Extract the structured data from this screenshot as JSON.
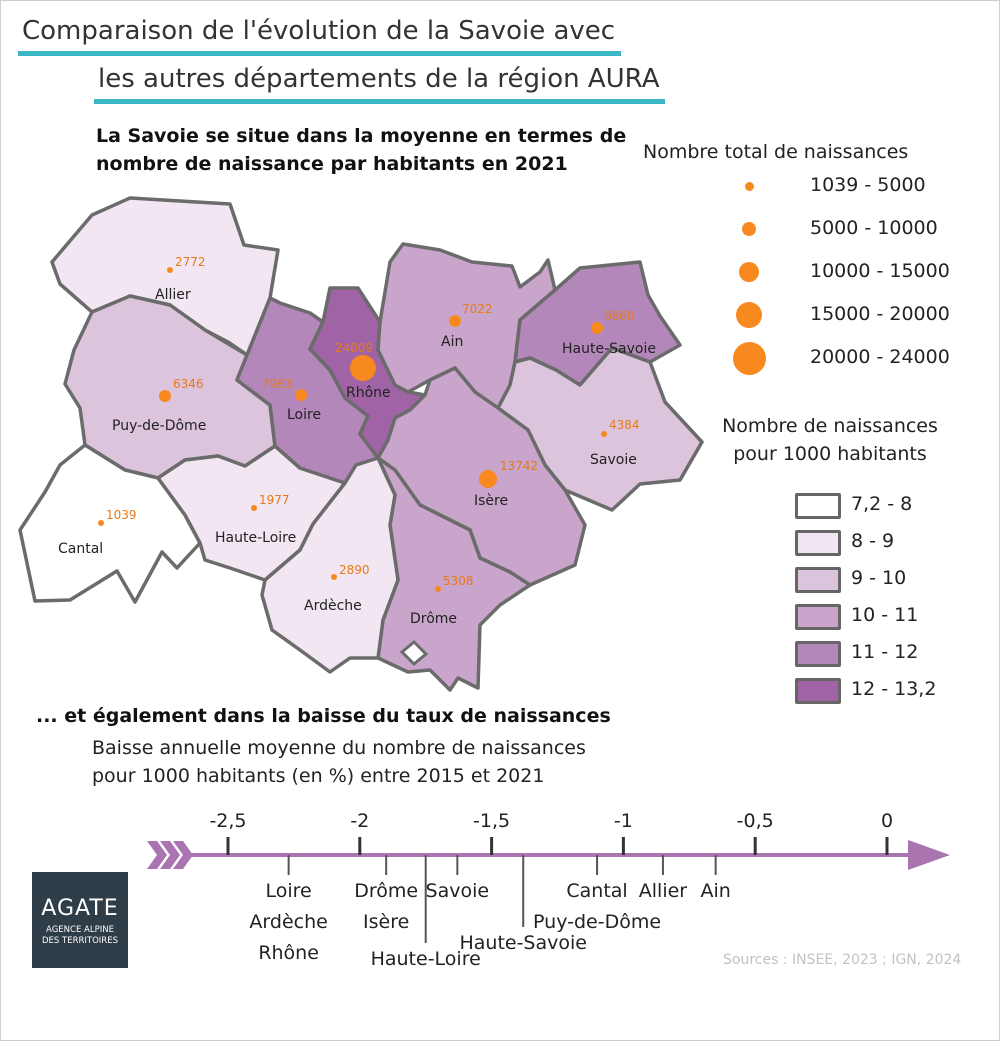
{
  "title": {
    "line1": "Comparaison de l'évolution de la Savoie avec",
    "line2": "les autres départements de la région AURA"
  },
  "map_section": {
    "heading": "La Savoie se situe dans la moyenne en termes de nombre de naissance par habitants en 2021"
  },
  "legend_births": {
    "title": "Nombre total de naissances",
    "classes": [
      "1039 - 5000",
      "5000 - 10000",
      "10000 - 15000",
      "15000 - 20000",
      "20000 - 24000"
    ],
    "dot_color": "#f7891f"
  },
  "legend_rate": {
    "title_line1": "Nombre de naissances",
    "title_line2": "pour 1000 habitants",
    "classes": [
      {
        "label": "7,2 - 8",
        "color": "#ffffff"
      },
      {
        "label": "8 - 9",
        "color": "#f1e6f1"
      },
      {
        "label": "9 - 10",
        "color": "#dcc4dc"
      },
      {
        "label": "10 - 11",
        "color": "#c9a5cc"
      },
      {
        "label": "11 - 12",
        "color": "#b487ba"
      },
      {
        "label": "12 - 13,2",
        "color": "#9f63a6"
      }
    ]
  },
  "departments": [
    {
      "name": "Allier",
      "births": "2772",
      "rate_class": 1
    },
    {
      "name": "Puy-de-Dôme",
      "births": "6346",
      "rate_class": 2
    },
    {
      "name": "Cantal",
      "births": "1039",
      "rate_class": 0
    },
    {
      "name": "Haute-Loire",
      "births": "1977",
      "rate_class": 1
    },
    {
      "name": "Loire",
      "births": "7963",
      "rate_class": 4
    },
    {
      "name": "Rhône",
      "births": "24009",
      "rate_class": 5
    },
    {
      "name": "Ain",
      "births": "7022",
      "rate_class": 3
    },
    {
      "name": "Haute-Savoie",
      "births": "9860",
      "rate_class": 4
    },
    {
      "name": "Savoie",
      "births": "4384",
      "rate_class": 2
    },
    {
      "name": "Isère",
      "births": "13742",
      "rate_class": 3
    },
    {
      "name": "Drôme",
      "births": "5308",
      "rate_class": 3
    },
    {
      "name": "Ardèche",
      "births": "2890",
      "rate_class": 1
    }
  ],
  "axis_section": {
    "heading": "... et également dans la baisse du taux de naissances",
    "subtitle_line1": "Baisse annuelle moyenne du nombre de naissances",
    "subtitle_line2": "pour 1000 habitants (en %) entre 2015 et 2021",
    "axis_color": "#a974b0"
  },
  "chart_data": {
    "type": "scatter",
    "title": "Baisse annuelle moyenne du nombre de naissances pour 1000 habitants (en %) entre 2015 et 2021",
    "xlim": [
      -2.5,
      0
    ],
    "ticks": [
      {
        "value": -2.5,
        "label": "-2,5"
      },
      {
        "value": -2,
        "label": "-2"
      },
      {
        "value": -1.5,
        "label": "-1,5"
      },
      {
        "value": -1,
        "label": "-1"
      },
      {
        "value": -0.5,
        "label": "-0,5"
      },
      {
        "value": 0,
        "label": "0"
      }
    ],
    "points": [
      {
        "value": -2.27,
        "labels": [
          "Loire",
          "Ardèche",
          "Rhône"
        ]
      },
      {
        "value": -1.9,
        "labels": [
          "Drôme",
          "Isère"
        ]
      },
      {
        "value": -1.75,
        "labels": [
          "Haute-Loire"
        ]
      },
      {
        "value": -1.63,
        "labels": [
          "Savoie"
        ]
      },
      {
        "value": -1.38,
        "labels": [
          "Haute-Savoie"
        ]
      },
      {
        "value": -1.1,
        "labels": [
          "Cantal",
          "Puy-de-Dôme"
        ]
      },
      {
        "value": -0.85,
        "labels": [
          "Allier"
        ]
      },
      {
        "value": -0.65,
        "labels": [
          "Ain"
        ]
      }
    ]
  },
  "logo": {
    "name": "AGATE",
    "tagline_line1": "AGENCE ALPINE",
    "tagline_line2": "DES TERRITOIRES"
  },
  "sources": "Sources : INSEE, 2023 ; IGN, 2024"
}
